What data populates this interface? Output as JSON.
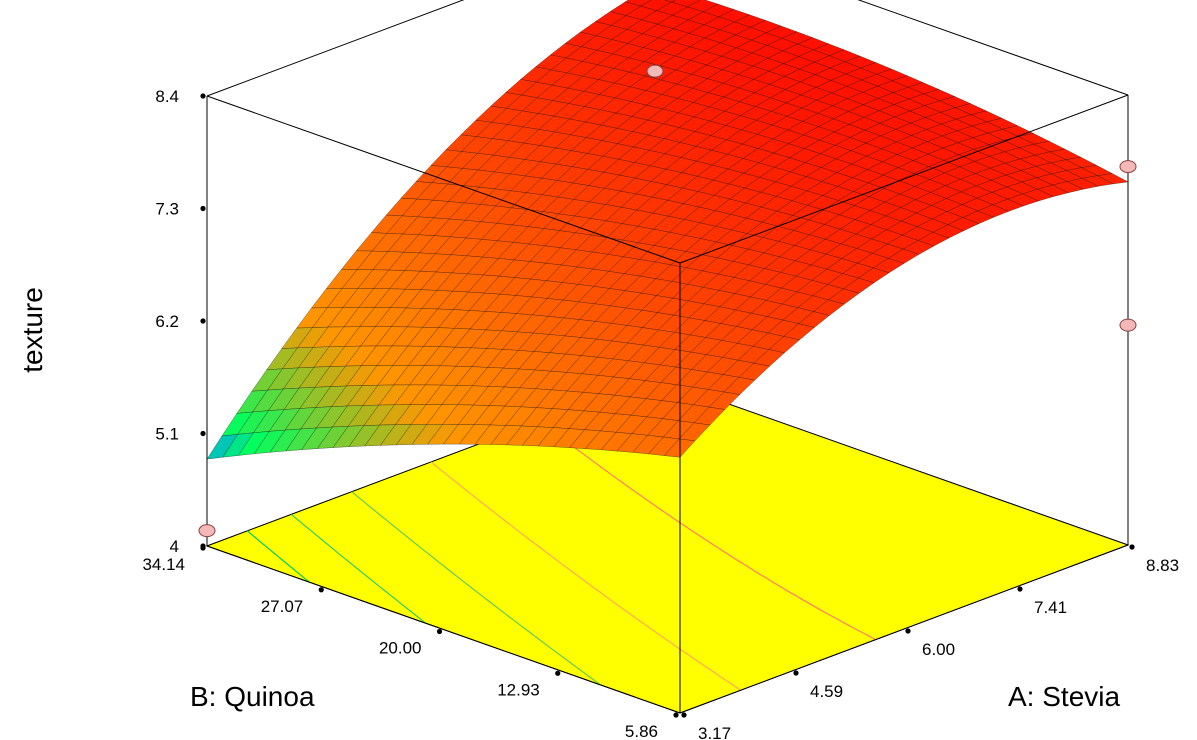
{
  "chart_data": {
    "type": "surface3d",
    "z_axis": {
      "label": "texture",
      "ticks": [
        "4",
        "5.1",
        "6.2",
        "7.3",
        "8.4"
      ],
      "range": [
        4.0,
        8.4
      ]
    },
    "a_axis": {
      "label": "A: Stevia",
      "ticks": [
        "3.17",
        "4.59",
        "6.00",
        "7.41",
        "8.83"
      ],
      "range": [
        3.17,
        8.83
      ]
    },
    "b_axis": {
      "label": "B: Quinoa",
      "ticks": [
        "5.86",
        "12.93",
        "20.00",
        "27.07",
        "34.14"
      ],
      "range": [
        5.86,
        34.14
      ]
    },
    "surface": {
      "grid": 30,
      "corner_values": {
        "a_min_b_min": 6.5,
        "a_max_b_min": 7.55,
        "a_min_b_max": 4.85,
        "a_max_b_max": 7.85
      },
      "maximum_value": 8.1
    },
    "design_points": [
      {
        "a": 8.83,
        "b": 5.86,
        "z": 6.15
      },
      {
        "a": 8.83,
        "b": 5.86,
        "z": 7.7
      },
      {
        "a": 3.17,
        "b": 34.14,
        "z": 4.15
      },
      {
        "a": 8.83,
        "b": 34.14,
        "z": 7.0
      },
      {
        "a": 8.83,
        "b": 34.14,
        "z": 8.2
      }
    ],
    "colors": {
      "high": "#ff0000",
      "mid": "#ff9600",
      "low": "#00ff60",
      "lowest": "#0096ff",
      "floor": "#ffff00",
      "mesh": "#000000"
    }
  }
}
